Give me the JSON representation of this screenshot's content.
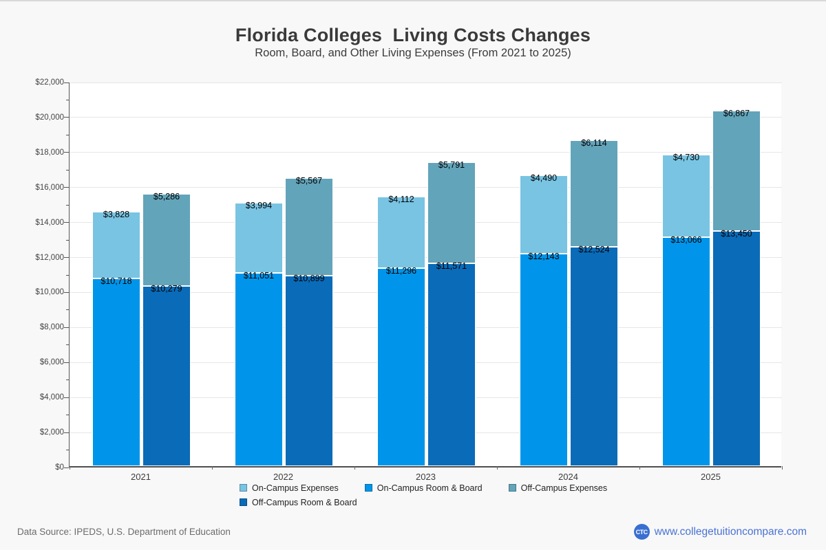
{
  "page": {
    "title": "Florida Colleges  Living Costs Changes",
    "subtitle": "Room, Board, and Other Living Expenses (From 2021 to 2025)",
    "data_source": "Data Source: IPEDS, U.S. Department of Education",
    "brand_url": "www.collegetuitioncompare.com",
    "brand_logo_text": "CTC"
  },
  "colors": {
    "on_campus_expenses": "#79c4e2",
    "on_campus_room_board": "#0095ea",
    "off_campus_expenses": "#62a4ba",
    "off_campus_room_board": "#0a6bb8",
    "gridline": "#e6e6e6",
    "axis_line": "#4e4e4e",
    "link_blue": "#4a72d4"
  },
  "chart_data": {
    "type": "bar",
    "stacked": true,
    "title": "Florida Colleges  Living Costs Changes",
    "subtitle": "Room, Board, and Other Living Expenses (From 2021 to 2025)",
    "categories": [
      "2021",
      "2022",
      "2023",
      "2024",
      "2025"
    ],
    "series": [
      {
        "name": "On-Campus Room & Board",
        "stack": "on-campus",
        "color_key": "on_campus_room_board",
        "values": [
          10718,
          11051,
          11296,
          12143,
          13066
        ]
      },
      {
        "name": "On-Campus Expenses",
        "stack": "on-campus",
        "color_key": "on_campus_expenses",
        "values": [
          3828,
          3994,
          4112,
          4490,
          4730
        ]
      },
      {
        "name": "Off-Campus Room & Board",
        "stack": "off-campus",
        "color_key": "off_campus_room_board",
        "values": [
          10279,
          10899,
          11571,
          12524,
          13450
        ]
      },
      {
        "name": "Off-Campus Expenses",
        "stack": "off-campus",
        "color_key": "off_campus_expenses",
        "values": [
          5286,
          5567,
          5791,
          6114,
          6867
        ]
      }
    ],
    "value_label_format": "$#,###",
    "xlabel": "",
    "ylabel": "",
    "ylim": [
      0,
      22000
    ],
    "ytick_step": 2000,
    "yminor_step": 1000,
    "ytick_prefix": "$",
    "grid": "horizontal",
    "legend_position": "bottom"
  },
  "legend": {
    "items": [
      {
        "label": "On-Campus Expenses",
        "color_key": "on_campus_expenses"
      },
      {
        "label": "On-Campus Room & Board",
        "color_key": "on_campus_room_board"
      },
      {
        "label": "Off-Campus Expenses",
        "color_key": "off_campus_expenses"
      },
      {
        "label": "Off-Campus Room & Board",
        "color_key": "off_campus_room_board"
      }
    ]
  }
}
